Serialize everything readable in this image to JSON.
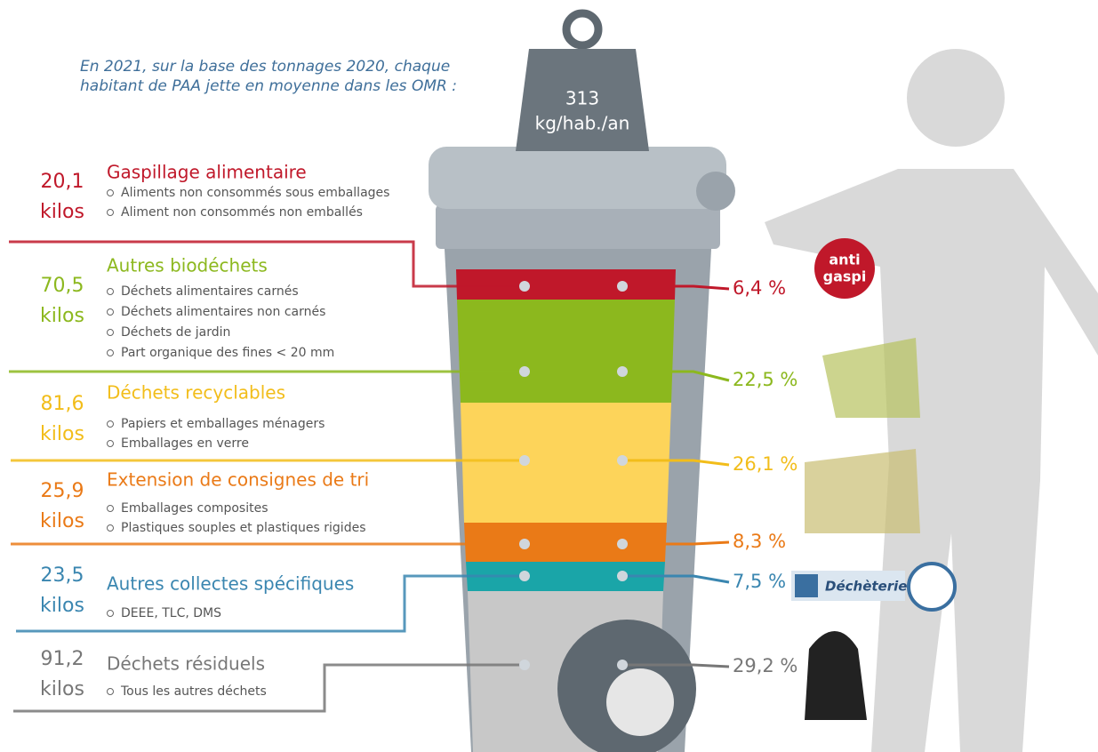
{
  "intro": [
    "En 2021, sur la base des tonnages 2020, chaque",
    "habitant de PAA jette en moyenne dans les OMR :"
  ],
  "weight": {
    "value": "313",
    "unit": "kg/hab./an"
  },
  "categories": [
    {
      "kilos": "20,1",
      "unit": "kilos",
      "title": "Gaspillage alimentaire",
      "color": "#c0182a",
      "items": [
        "Aliments non consommés sous emballages",
        "Aliment non consommés non emballés"
      ],
      "percent": "6,4 %"
    },
    {
      "kilos": "70,5",
      "unit": "kilos",
      "title": "Autres biodéchets",
      "color": "#8cb81e",
      "items": [
        "Déchets alimentaires carnés",
        "Déchets alimentaires non carnés",
        "Déchets de jardin",
        "Part organique des fines < 20 mm"
      ],
      "percent": "22,5 %"
    },
    {
      "kilos": "81,6",
      "unit": "kilos",
      "title": "Déchets recyclables",
      "color": "#f2bd1a",
      "items": [
        "Papiers et emballages ménagers",
        "Emballages en verre"
      ],
      "percent": "26,1 %"
    },
    {
      "kilos": "25,9",
      "unit": "kilos",
      "title": "Extension de consignes de tri",
      "color": "#ea7a17",
      "items": [
        "Emballages composites",
        "Plastiques souples et plastiques rigides"
      ],
      "percent": "8,3 %"
    },
    {
      "kilos": "23,5",
      "unit": "kilos",
      "title": "Autres collectes spécifiques",
      "color": "#3a86b0",
      "items": [
        "DEEE, TLC, DMS"
      ],
      "percent": "7,5 %"
    },
    {
      "kilos": "91,2",
      "unit": "kilos",
      "title": "Déchets résiduels",
      "color": "#777777",
      "items": [
        "Tous les autres déchets"
      ],
      "percent": "29,2 %"
    }
  ],
  "badges": {
    "antigaspi": [
      "anti",
      "gaspi"
    ],
    "decheterie": "Déchèterie"
  }
}
